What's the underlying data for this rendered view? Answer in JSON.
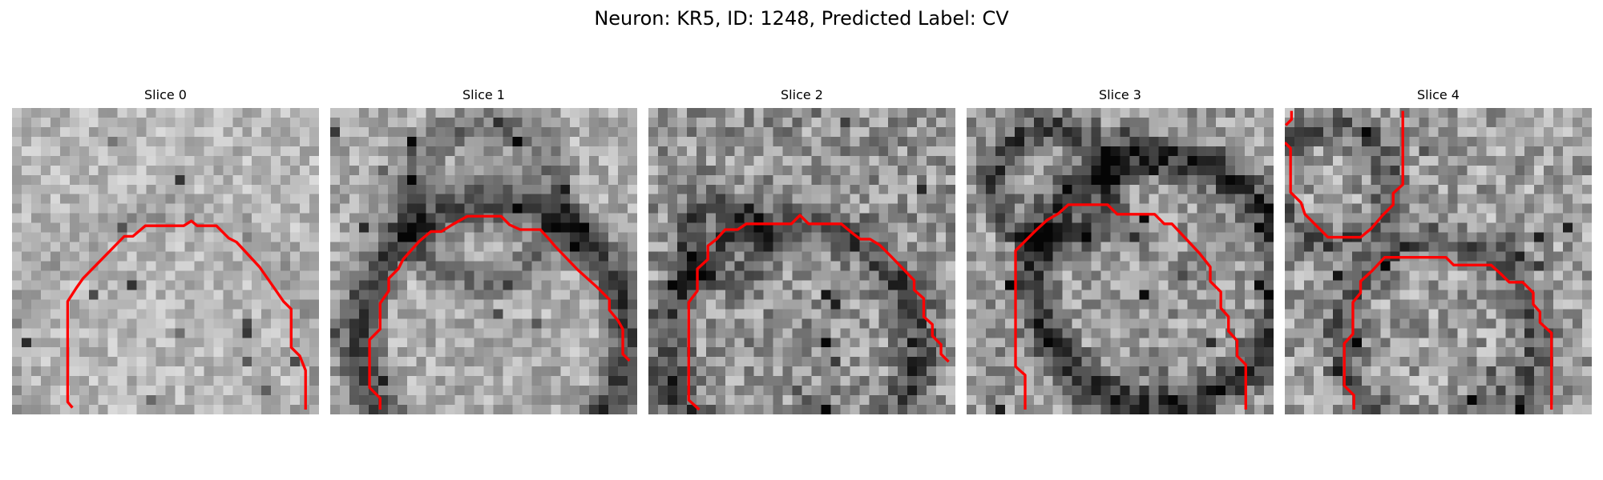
{
  "figure": {
    "title": "Neuron: KR5, ID: 1248, Predicted Label: CV",
    "overlay_color": "#ff0000",
    "image_colormap": "gray"
  },
  "panels": [
    {
      "title": "Slice 0"
    },
    {
      "title": "Slice 1"
    },
    {
      "title": "Slice 2"
    },
    {
      "title": "Slice 3"
    },
    {
      "title": "Slice 4"
    }
  ]
}
